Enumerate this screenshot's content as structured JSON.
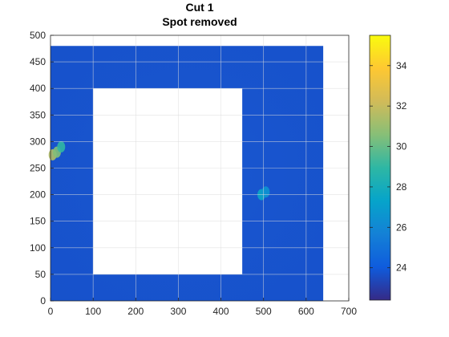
{
  "chart_data": {
    "type": "heatmap",
    "title": [
      "Cut 1",
      "Spot removed"
    ],
    "xlabel": "",
    "ylabel": "",
    "xlim": [
      0,
      700
    ],
    "ylim": [
      0,
      500
    ],
    "xticks": [
      0,
      100,
      200,
      300,
      400,
      500,
      600,
      700
    ],
    "yticks": [
      0,
      50,
      100,
      150,
      200,
      250,
      300,
      350,
      400,
      450,
      500
    ],
    "grid": true,
    "colormap": "parula",
    "colormap_stops": [
      "#352a87",
      "#0f5cdd",
      "#1481d6",
      "#06a4ca",
      "#2eb7a4",
      "#87bf77",
      "#d1bb59",
      "#fec832",
      "#f9fb0e"
    ],
    "field_value_typical": 23.7,
    "color_range": [
      22.4,
      35.5
    ],
    "colorbar_ticks": [
      24,
      26,
      28,
      30,
      32,
      34
    ],
    "data_extent": {
      "x": [
        0,
        640
      ],
      "y": [
        0,
        480
      ]
    },
    "removed_region": {
      "x": [
        100,
        450
      ],
      "y": [
        50,
        400
      ]
    },
    "hotspots": [
      {
        "x": 5,
        "y": 275,
        "value": 31.5
      },
      {
        "x": 15,
        "y": 280,
        "value": 30.5
      },
      {
        "x": 25,
        "y": 290,
        "value": 29.0
      },
      {
        "x": 495,
        "y": 200,
        "value": 27.5
      },
      {
        "x": 505,
        "y": 205,
        "value": 26.5
      }
    ]
  }
}
